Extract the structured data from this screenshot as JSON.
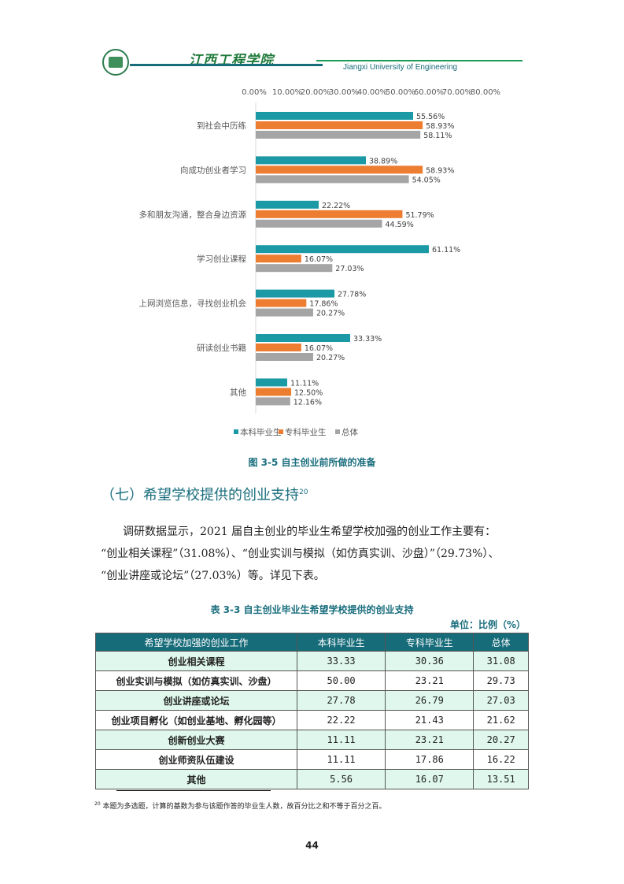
{
  "header": {
    "school_cn": "江西工程学院",
    "school_en": "Jiangxi University of Engineering"
  },
  "chart_data": {
    "type": "bar",
    "orientation": "horizontal",
    "title": "图 3-5 自主创业前所做的准备",
    "xlim": [
      0,
      80
    ],
    "xticks": [
      "0.00%",
      "10.00%",
      "20.00%",
      "30.00%",
      "40.00%",
      "50.00%",
      "60.00%",
      "70.00%",
      "80.00%"
    ],
    "categories": [
      "到社会中历练",
      "向成功创业者学习",
      "多和朋友沟通，整合身边资源",
      "学习创业课程",
      "上网浏览信息，寻找创业机会",
      "研读创业书籍",
      "其他"
    ],
    "series": [
      {
        "name": "本科毕业生",
        "color": "#1b9aa6",
        "values": [
          55.56,
          38.89,
          22.22,
          61.11,
          27.78,
          33.33,
          11.11
        ]
      },
      {
        "name": "专科毕业生",
        "color": "#ed7d31",
        "values": [
          58.93,
          58.93,
          51.79,
          16.07,
          17.86,
          16.07,
          12.5
        ]
      },
      {
        "name": "总体",
        "color": "#a5a5a5",
        "values": [
          58.11,
          54.05,
          44.59,
          27.03,
          20.27,
          20.27,
          12.16
        ]
      }
    ],
    "legend": "bottom"
  },
  "section": {
    "title": "（七）希望学校提供的创业支持",
    "footnote_ref": "20"
  },
  "paragraph": {
    "line1": "调研数据显示，2021 届自主创业的毕业生希望学校加强的创业工作主要有：",
    "line2": "“创业相关课程”（31.08%）、“创业实训与模拟（如仿真实训、沙盘）”（29.73%）、",
    "line3": "“创业讲座或论坛”（27.03%）等。详见下表。"
  },
  "table": {
    "caption": "表 3-3 自主创业毕业生希望学校提供的创业支持",
    "unit": "单位：比例（%）",
    "headers": [
      "希望学校加强的创业工作",
      "本科毕业生",
      "专科毕业生",
      "总体"
    ],
    "rows": [
      [
        "创业相关课程",
        "33.33",
        "30.36",
        "31.08"
      ],
      [
        "创业实训与模拟（如仿真实训、沙盘）",
        "50.00",
        "23.21",
        "29.73"
      ],
      [
        "创业讲座或论坛",
        "27.78",
        "26.79",
        "27.03"
      ],
      [
        "创业项目孵化（如创业基地、孵化园等）",
        "22.22",
        "21.43",
        "21.62"
      ],
      [
        "创新创业大赛",
        "11.11",
        "23.21",
        "20.27"
      ],
      [
        "创业师资队伍建设",
        "11.11",
        "17.86",
        "16.22"
      ],
      [
        "其他",
        "5.56",
        "16.07",
        "13.51"
      ]
    ]
  },
  "footnote": {
    "num": "20",
    "text": "本题为多选题，计算的基数为参与该题作答的毕业生人数，故百分比之和不等于百分之百。"
  },
  "page_number": "44"
}
